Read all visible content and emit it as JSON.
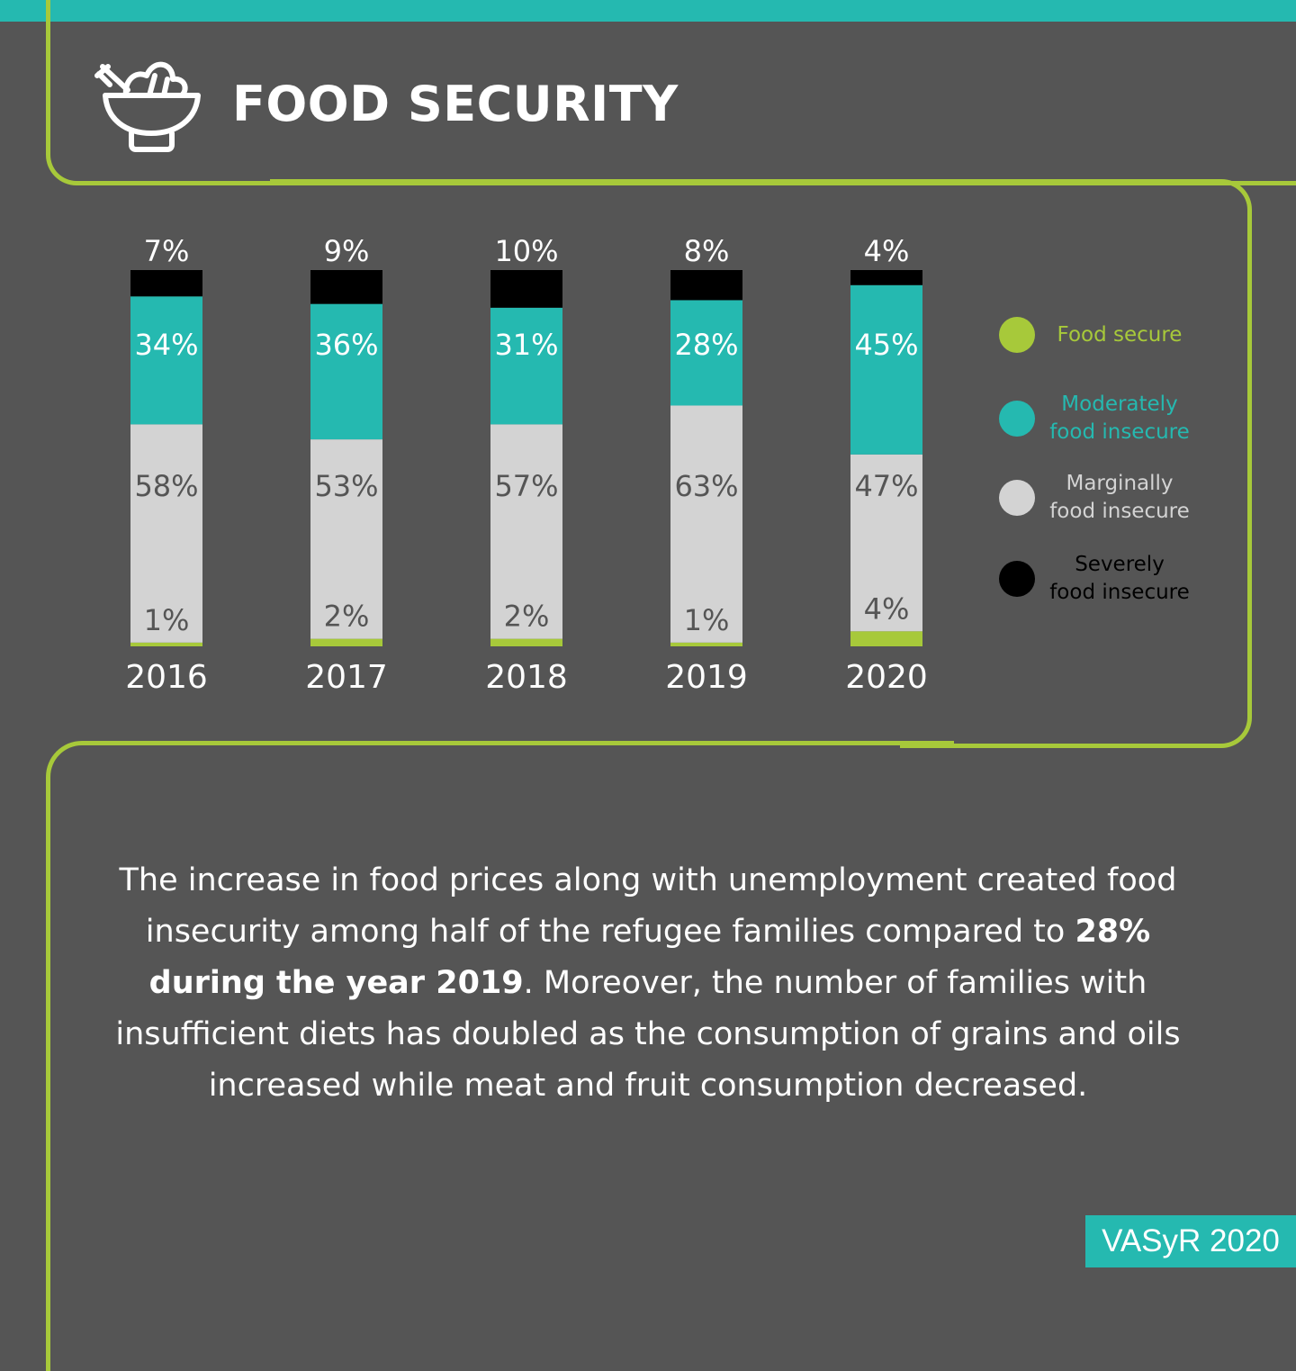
{
  "header": {
    "title": "FOOD SECURITY",
    "icon": "salad-bowl-icon"
  },
  "colors": {
    "background": "#555555",
    "frame": "#a7c93a",
    "accent": "#25b9b0",
    "food_secure": "#a7c93a",
    "moderately": "#25b9b0",
    "marginally": "#d3d3d3",
    "severely": "#000000"
  },
  "chart_data": {
    "type": "bar",
    "stacked": true,
    "normalized": true,
    "categories": [
      "2016",
      "2017",
      "2018",
      "2019",
      "2020"
    ],
    "series": [
      {
        "name": "Severely food insecure",
        "values": [
          7,
          9,
          10,
          8,
          4
        ],
        "labels": [
          "7%",
          "9%",
          "10%",
          "8%",
          "4%"
        ],
        "color": "#000000"
      },
      {
        "name": "Moderately food insecure",
        "values": [
          34,
          36,
          31,
          28,
          45
        ],
        "labels": [
          "34%",
          "36%",
          "31%",
          "28%",
          "45%"
        ],
        "color": "#25b9b0"
      },
      {
        "name": "Marginally food insecure",
        "values": [
          58,
          53,
          57,
          63,
          47
        ],
        "labels": [
          "58%",
          "53%",
          "57%",
          "63%",
          "47%"
        ],
        "color": "#d3d3d3"
      },
      {
        "name": "Food secure",
        "values": [
          1,
          2,
          2,
          1,
          4
        ],
        "labels": [
          "1%",
          "2%",
          "2%",
          "1%",
          "4%"
        ],
        "color": "#a7c93a"
      }
    ],
    "legend": {
      "position": "right",
      "items": [
        {
          "label": "Food secure",
          "color": "#a7c93a"
        },
        {
          "label": "Moderately\nfood insecure",
          "color": "#25b9b0"
        },
        {
          "label": "Marginally\nfood insecure",
          "color": "#d3d3d3"
        },
        {
          "label": "Severely\nfood insecure",
          "color": "#000000"
        }
      ]
    },
    "grid": false
  },
  "body": {
    "text_before": "The increase in food prices along with unemployment created food insecurity among half of the refugee families compared to ",
    "text_bold": "28% during the year 2019",
    "text_after": ". Moreover, the number of families with insufficient diets has doubled as the consumption of grains and oils increased while meat and fruit consumption decreased."
  },
  "source": {
    "label": "VASyR 2020"
  }
}
